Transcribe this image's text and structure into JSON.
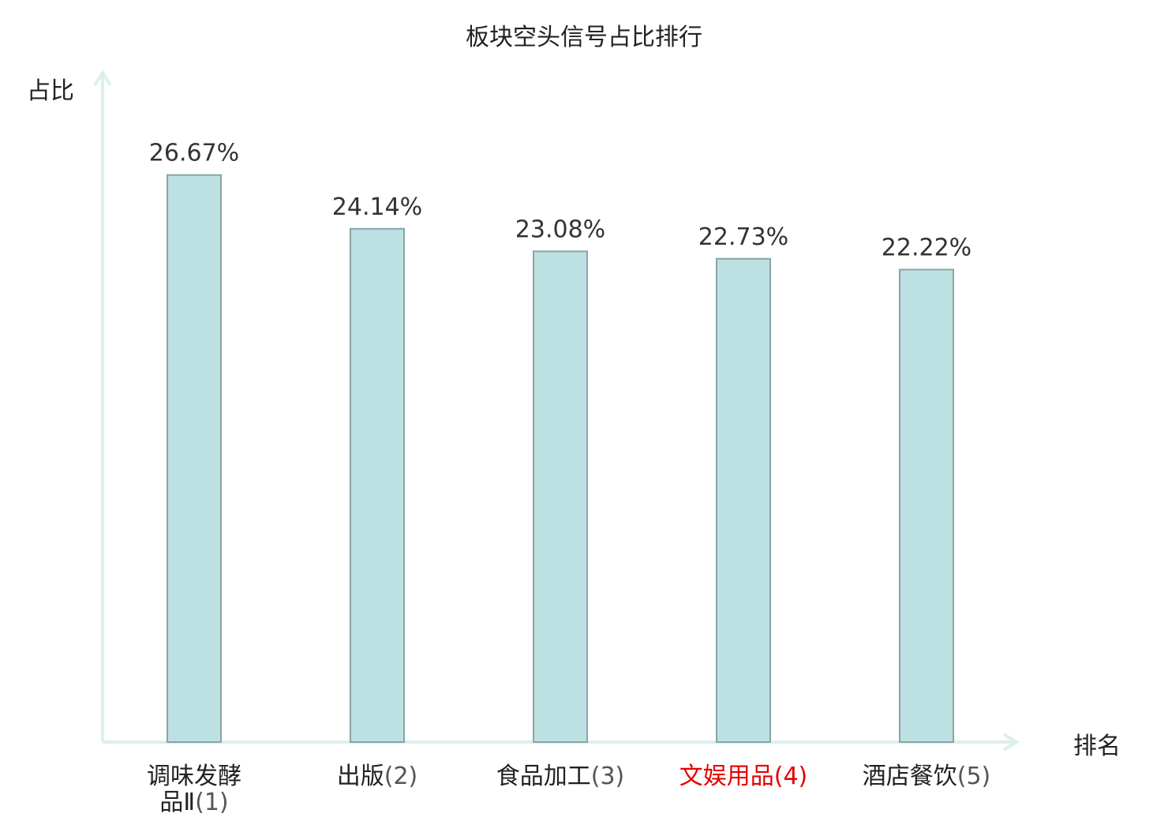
{
  "chart_data": {
    "type": "bar",
    "title": "板块空头信号占比排行",
    "ylabel": "占比",
    "xlabel": "排名",
    "categories": [
      {
        "name": "调味发酵品Ⅱ",
        "rank": "(1)",
        "highlight": false
      },
      {
        "name": "出版",
        "rank": "(2)",
        "highlight": false
      },
      {
        "name": "食品加工",
        "rank": "(3)",
        "highlight": false
      },
      {
        "name": "文娱用品",
        "rank": "(4)",
        "highlight": true
      },
      {
        "name": "酒店餐饮",
        "rank": "(5)",
        "highlight": false
      }
    ],
    "values": [
      26.67,
      24.14,
      23.08,
      22.73,
      22.22
    ],
    "value_labels": [
      "26.67%",
      "24.14%",
      "23.08%",
      "22.73%",
      "22.22%"
    ],
    "ylim": [
      0,
      30
    ],
    "grid": false,
    "colors": {
      "bar_fill": "#bde0e2",
      "bar_stroke": "#86a6a6",
      "axis": "#dcefed",
      "text": "#222222",
      "rank_text": "#555555",
      "highlight": "#e60000"
    }
  }
}
